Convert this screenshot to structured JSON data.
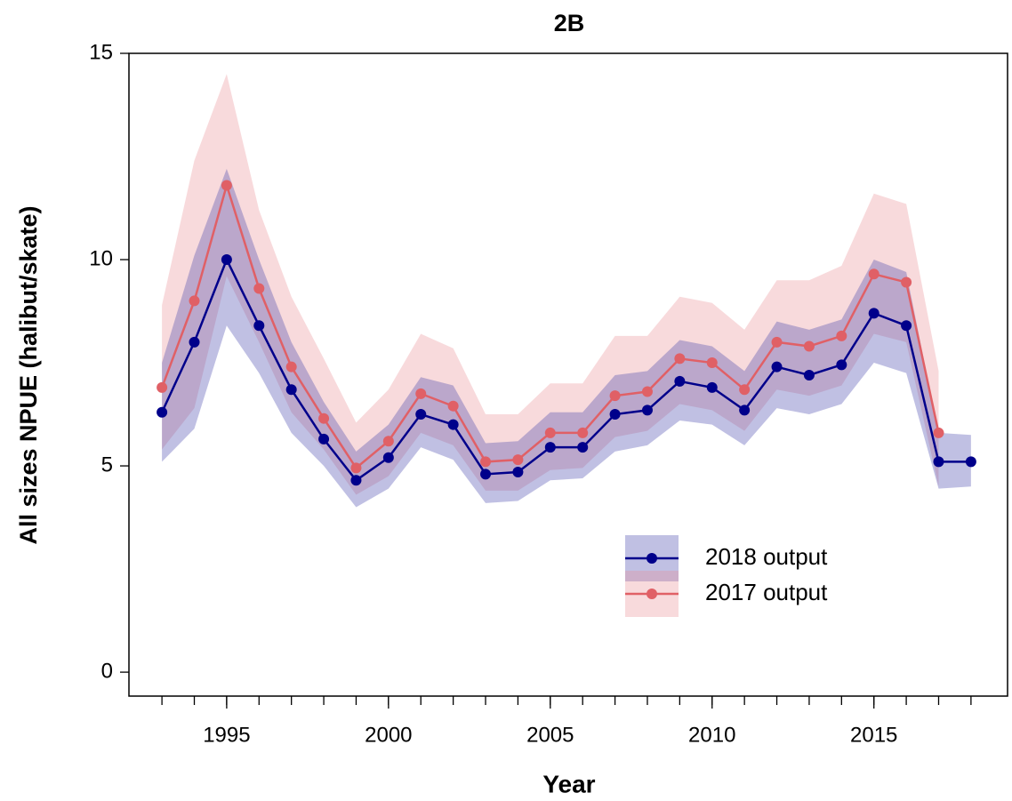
{
  "chart_data": {
    "type": "line",
    "title": "2B",
    "xlabel": "Year",
    "ylabel": "All sizes NPUE (halibut/skate)",
    "x": [
      1993,
      1994,
      1995,
      1996,
      1997,
      1998,
      1999,
      2000,
      2001,
      2002,
      2003,
      2004,
      2005,
      2006,
      2007,
      2008,
      2009,
      2010,
      2011,
      2012,
      2013,
      2014,
      2015,
      2016,
      2017,
      2018
    ],
    "series": [
      {
        "name": "2018 output",
        "color": "#00008b",
        "band_color": "#3a3aa8",
        "values": [
          6.3,
          8.0,
          10.0,
          8.4,
          6.85,
          5.65,
          4.65,
          5.2,
          6.25,
          6.0,
          4.8,
          4.85,
          5.45,
          5.45,
          6.25,
          6.35,
          7.05,
          6.9,
          6.35,
          7.4,
          7.2,
          7.45,
          8.7,
          8.4,
          5.1,
          5.1
        ],
        "lower": [
          5.1,
          5.9,
          8.4,
          7.25,
          5.8,
          5.0,
          4.0,
          4.45,
          5.45,
          5.15,
          4.1,
          4.15,
          4.65,
          4.7,
          5.35,
          5.5,
          6.1,
          6.0,
          5.5,
          6.4,
          6.25,
          6.5,
          7.5,
          7.25,
          4.45,
          4.5
        ],
        "upper": [
          7.5,
          10.1,
          12.2,
          10.0,
          8.0,
          6.55,
          5.35,
          6.0,
          7.15,
          6.95,
          5.55,
          5.6,
          6.3,
          6.3,
          7.2,
          7.3,
          8.05,
          7.9,
          7.3,
          8.5,
          8.3,
          8.55,
          10.0,
          9.7,
          5.8,
          5.75
        ]
      },
      {
        "name": "2017 output",
        "color": "#e06066",
        "band_color": "#e88c92",
        "values": [
          6.9,
          9.0,
          11.8,
          9.3,
          7.4,
          6.15,
          4.95,
          5.6,
          6.75,
          6.45,
          5.1,
          5.15,
          5.8,
          5.8,
          6.7,
          6.8,
          7.6,
          7.5,
          6.85,
          8.0,
          7.9,
          8.15,
          9.65,
          9.45,
          5.8,
          null
        ],
        "lower": [
          5.4,
          6.4,
          9.6,
          8.0,
          6.3,
          5.4,
          4.3,
          4.75,
          5.8,
          5.5,
          4.4,
          4.4,
          4.9,
          4.95,
          5.7,
          5.85,
          6.5,
          6.35,
          5.85,
          6.85,
          6.7,
          6.95,
          8.2,
          8.0,
          4.5,
          null
        ],
        "upper": [
          8.9,
          12.4,
          14.5,
          11.2,
          9.1,
          7.6,
          6.05,
          6.85,
          8.2,
          7.85,
          6.25,
          6.25,
          7.0,
          7.0,
          8.15,
          8.15,
          9.1,
          8.95,
          8.3,
          9.5,
          9.5,
          9.85,
          11.6,
          11.35,
          7.3,
          null
        ]
      }
    ],
    "xlim": [
      1991.98,
      2019.13
    ],
    "xticks": [
      1995,
      2000,
      2005,
      2010,
      2015
    ],
    "xminorticks": [
      1993,
      1994,
      1995,
      1996,
      1997,
      1998,
      1999,
      2000,
      2001,
      2002,
      2003,
      2004,
      2005,
      2006,
      2007,
      2008,
      2009,
      2010,
      2011,
      2012,
      2013,
      2014,
      2015,
      2016,
      2017,
      2018
    ],
    "ylim": [
      -0.58,
      15
    ],
    "yticks": [
      0,
      5,
      10,
      15
    ],
    "legend": "lower-right"
  }
}
